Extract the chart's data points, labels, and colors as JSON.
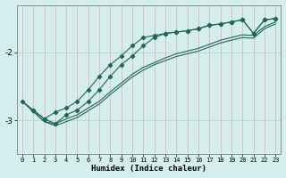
{
  "xlabel": "Humidex (Indice chaleur)",
  "ylabel": "",
  "bg_color": "#d4eeed",
  "grid_color_v": "#e8b4b4",
  "grid_color_h": "#b8d4d4",
  "line_color": "#206858",
  "xlim": [
    -0.5,
    23.5
  ],
  "ylim": [
    -3.5,
    -1.3
  ],
  "yticks": [
    -3,
    -2
  ],
  "xticks": [
    0,
    1,
    2,
    3,
    4,
    5,
    6,
    7,
    8,
    9,
    10,
    11,
    12,
    13,
    14,
    15,
    16,
    17,
    18,
    19,
    20,
    21,
    22,
    23
  ],
  "series": [
    {
      "x": [
        0,
        1,
        2,
        3,
        4,
        5,
        6,
        7,
        8,
        9,
        10,
        11,
        12,
        13,
        14,
        15,
        16,
        17,
        18,
        19,
        20,
        21,
        22,
        23
      ],
      "y": [
        -2.72,
        -2.85,
        -2.98,
        -2.88,
        -2.82,
        -2.72,
        -2.55,
        -2.35,
        -2.18,
        -2.05,
        -1.9,
        -1.78,
        -1.75,
        -1.72,
        -1.7,
        -1.68,
        -1.65,
        -1.6,
        -1.58,
        -1.55,
        -1.52,
        -1.72,
        -1.52,
        -1.5
      ],
      "marker": true
    },
    {
      "x": [
        1,
        2,
        3,
        4,
        5,
        6,
        7,
        8,
        9,
        10,
        11,
        12,
        13,
        14,
        15,
        16,
        17,
        18,
        19,
        20,
        21,
        22,
        23
      ],
      "y": [
        -2.85,
        -2.98,
        -3.05,
        -2.92,
        -2.85,
        -2.72,
        -2.55,
        -2.35,
        -2.18,
        -2.05,
        -1.9,
        -1.78,
        -1.72,
        -1.7,
        -1.68,
        -1.65,
        -1.6,
        -1.58,
        -1.55,
        -1.52,
        -1.72,
        -1.52,
        -1.5
      ],
      "marker": true
    },
    {
      "x": [
        0,
        2,
        3,
        4,
        5,
        6,
        7,
        8,
        9,
        10,
        11,
        12,
        13,
        14,
        15,
        16,
        17,
        18,
        19,
        20,
        21,
        22,
        23
      ],
      "y": [
        -2.72,
        -3.02,
        -3.05,
        -2.98,
        -2.92,
        -2.82,
        -2.72,
        -2.58,
        -2.45,
        -2.32,
        -2.22,
        -2.15,
        -2.08,
        -2.02,
        -1.98,
        -1.94,
        -1.88,
        -1.82,
        -1.78,
        -1.74,
        -1.75,
        -1.62,
        -1.55
      ],
      "marker": false
    },
    {
      "x": [
        0,
        2,
        3,
        4,
        5,
        6,
        7,
        8,
        9,
        10,
        11,
        12,
        13,
        14,
        15,
        16,
        17,
        18,
        19,
        20,
        21,
        22,
        23
      ],
      "y": [
        -2.72,
        -3.02,
        -3.08,
        -3.02,
        -2.96,
        -2.86,
        -2.76,
        -2.62,
        -2.49,
        -2.36,
        -2.26,
        -2.18,
        -2.12,
        -2.06,
        -2.02,
        -1.98,
        -1.92,
        -1.86,
        -1.82,
        -1.78,
        -1.79,
        -1.65,
        -1.58
      ],
      "marker": false
    }
  ]
}
